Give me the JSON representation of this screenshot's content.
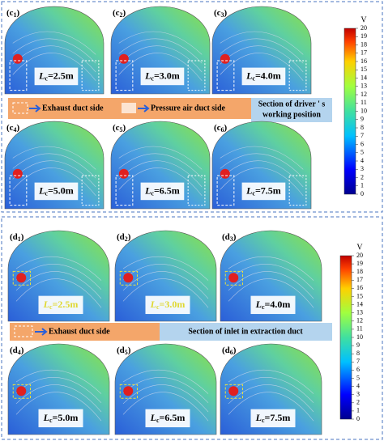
{
  "top": {
    "panels": [
      {
        "label": [
          "(c",
          "1",
          ")"
        ],
        "lc": [
          "L",
          "c",
          "=2.5m"
        ]
      },
      {
        "label": [
          "(c",
          "2",
          ")"
        ],
        "lc": [
          "L",
          "c",
          "=3.0m"
        ]
      },
      {
        "label": [
          "(c",
          "3",
          ")"
        ],
        "lc": [
          "L",
          "c",
          "=4.0m"
        ]
      },
      {
        "label": [
          "(c",
          "4",
          ")"
        ],
        "lc": [
          "L",
          "c",
          "=5.0m"
        ]
      },
      {
        "label": [
          "(c",
          "5",
          ")"
        ],
        "lc": [
          "L",
          "c",
          "=6.5m"
        ]
      },
      {
        "label": [
          "(c",
          "6",
          ")"
        ],
        "lc": [
          "L",
          "c",
          "=7.5m"
        ]
      }
    ],
    "legend": {
      "exhaust": "Exhaust duct side",
      "pressure": "Pressure air duct side",
      "section": [
        "Section of driver ' s",
        "working position"
      ]
    },
    "colorbar": {
      "unit": "V",
      "ticks": [
        0,
        1,
        2,
        3,
        4,
        5,
        6,
        7,
        8,
        9,
        10,
        11,
        12,
        13,
        14,
        15,
        16,
        17,
        18,
        19,
        20
      ]
    }
  },
  "bottom": {
    "panels": [
      {
        "label": [
          "(d",
          "1",
          ")"
        ],
        "lc": [
          "L",
          "c",
          "=2.5m"
        ],
        "text_color": "#e0d830"
      },
      {
        "label": [
          "(d",
          "2",
          ")"
        ],
        "lc": [
          "L",
          "c",
          "=3.0m"
        ],
        "text_color": "#e0d830"
      },
      {
        "label": [
          "(d",
          "3",
          ")"
        ],
        "lc": [
          "L",
          "c",
          "=4.0m"
        ],
        "text_color": "#000000"
      },
      {
        "label": [
          "(d",
          "4",
          ")"
        ],
        "lc": [
          "L",
          "c",
          "=5.0m"
        ],
        "text_color": "#000000"
      },
      {
        "label": [
          "(d",
          "5",
          ")"
        ],
        "lc": [
          "L",
          "c",
          "=6.5m"
        ],
        "text_color": "#000000"
      },
      {
        "label": [
          "(d",
          "6",
          ")"
        ],
        "lc": [
          "L",
          "c",
          "=7.5m"
        ],
        "text_color": "#000000"
      }
    ],
    "legend": {
      "exhaust": "Exhaust duct side",
      "section": "Section of inlet in extraction duct"
    },
    "colorbar": {
      "unit": "V",
      "ticks": [
        0,
        1,
        2,
        3,
        4,
        5,
        6,
        7,
        8,
        9,
        10,
        11,
        12,
        13,
        14,
        15,
        16,
        17,
        18,
        19,
        20
      ]
    }
  }
}
